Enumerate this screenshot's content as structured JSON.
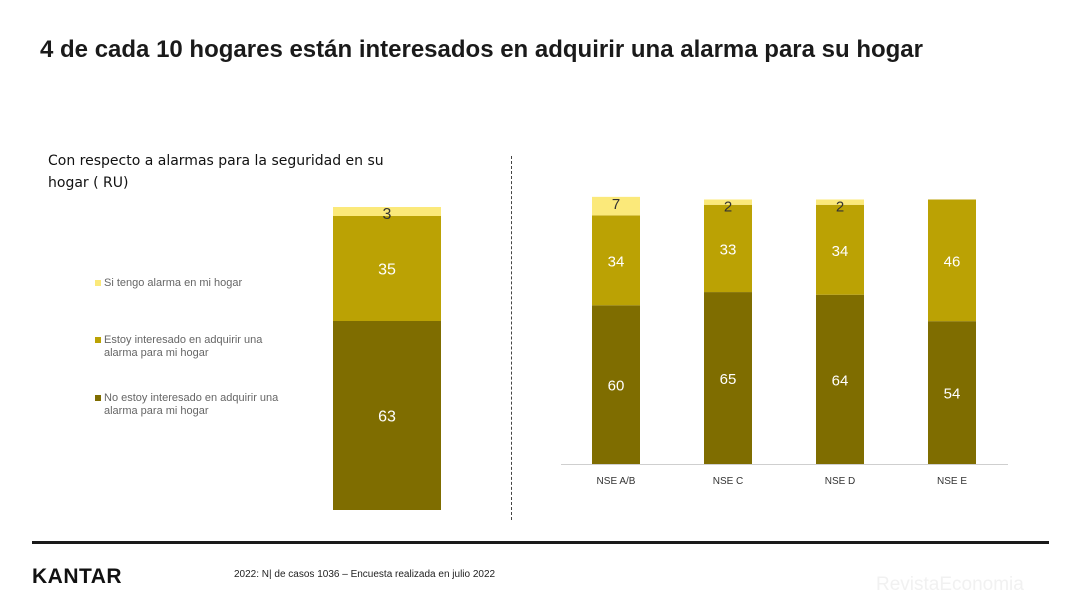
{
  "header": {
    "title": "4 de cada 10 hogares están interesados en adquirir una alarma para su hogar"
  },
  "subtitle": "Con respecto a alarmas para la seguridad en su hogar ( RU)",
  "legend": [
    {
      "label": "Si tengo alarma en mi hogar",
      "color": "#FBE97A"
    },
    {
      "label": "Estoy interesado en adquirir una alarma para mi hogar",
      "color": "#BBA204"
    },
    {
      "label": "No estoy interesado en adquirir una alarma para mi hogar",
      "color": "#7F6D00"
    }
  ],
  "chart_data": [
    {
      "type": "bar",
      "stacked": true,
      "categories": [
        ""
      ],
      "series": [
        {
          "name": "No estoy interesado en adquirir una alarma para mi hogar",
          "values": [
            63
          ],
          "color": "#7F6D00"
        },
        {
          "name": "Estoy interesado en adquirir una alarma para mi hogar",
          "values": [
            35
          ],
          "color": "#BBA204"
        },
        {
          "name": "Si tengo alarma en mi hogar",
          "values": [
            3
          ],
          "color": "#FBE97A"
        }
      ]
    },
    {
      "type": "bar",
      "stacked": true,
      "categories": [
        "NSE A/B",
        "NSE C",
        "NSE D",
        "NSE E"
      ],
      "series": [
        {
          "name": "No estoy interesado en adquirir una alarma para mi hogar",
          "values": [
            60,
            65,
            64,
            54
          ],
          "color": "#7F6D00"
        },
        {
          "name": "Estoy interesado en adquirir una alarma para mi hogar",
          "values": [
            34,
            33,
            34,
            46
          ],
          "color": "#BBA204"
        },
        {
          "name": "Si tengo alarma en mi hogar",
          "values": [
            7,
            2,
            2,
            0
          ],
          "color": "#FBE97A"
        }
      ]
    }
  ],
  "footer": {
    "logo": "KANTAR",
    "note": "2022: N| de casos 1036 – Encuesta realizada en julio 2022",
    "watermark": "RevistaEconomia"
  }
}
